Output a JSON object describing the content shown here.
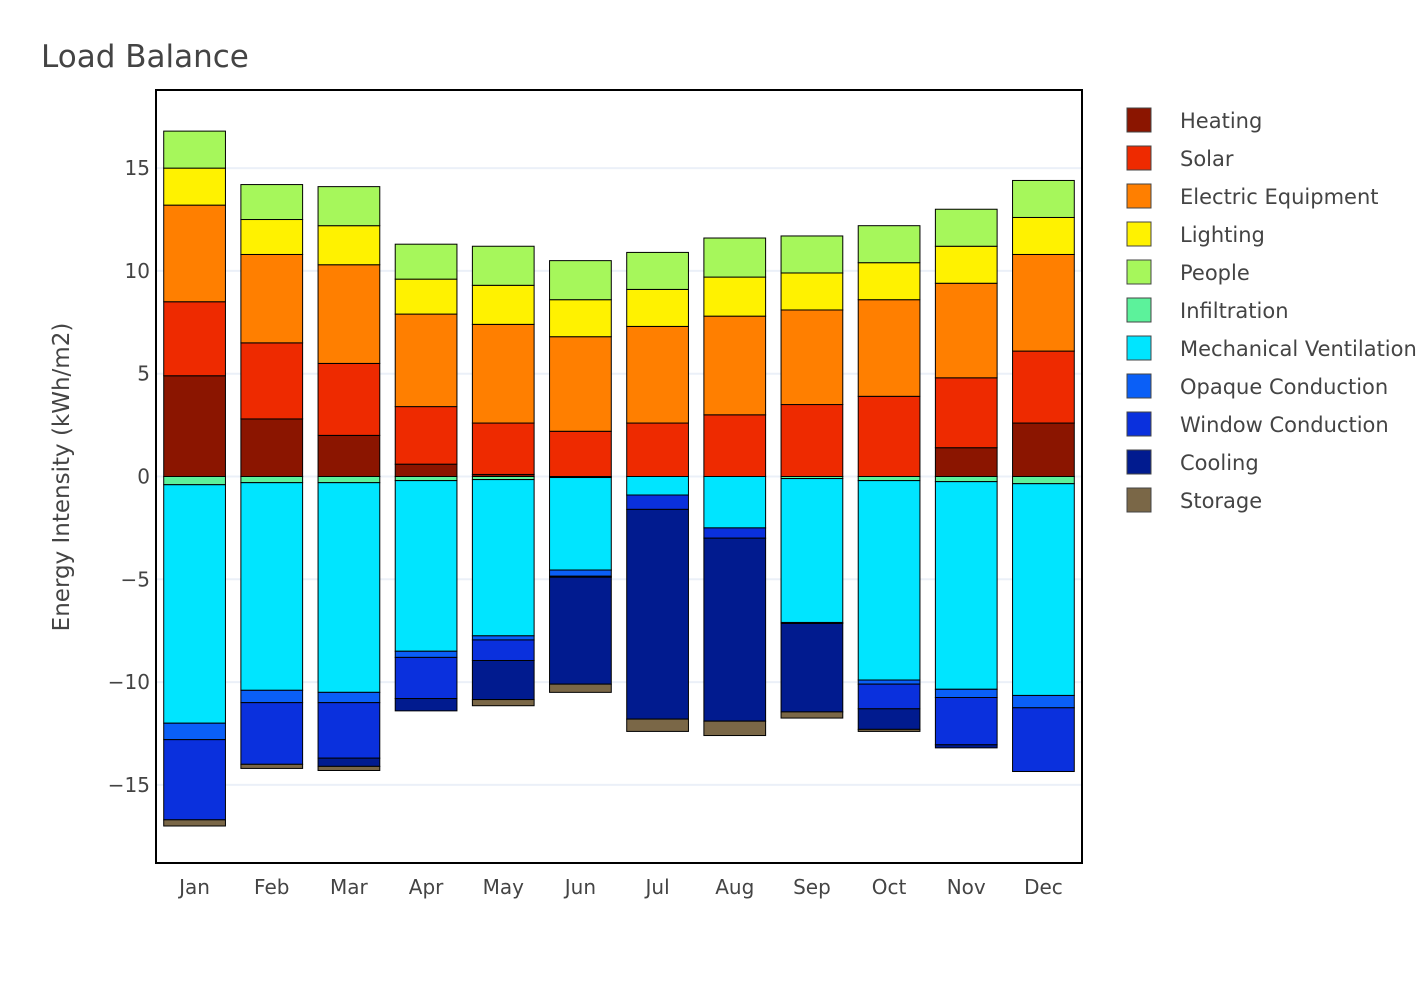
{
  "chart_data": {
    "type": "bar",
    "stacked": true,
    "title": "Load Balance",
    "ylabel": "Energy Intensity (kWh/m2)",
    "xlabel": "",
    "ylim": [
      -18.8,
      18.8
    ],
    "yticks": [
      -15,
      -10,
      -5,
      0,
      5,
      10,
      15
    ],
    "ytick_labels": [
      "−15",
      "−10",
      "−5",
      "0",
      "5",
      "10",
      "15"
    ],
    "grid": true,
    "legend_position": "right",
    "categories": [
      "Jan",
      "Feb",
      "Mar",
      "Apr",
      "May",
      "Jun",
      "Jul",
      "Aug",
      "Sep",
      "Oct",
      "Nov",
      "Dec"
    ],
    "series": [
      {
        "name": "Heating",
        "color": "#8b1500",
        "values": [
          4.9,
          2.8,
          2.0,
          0.6,
          0.1,
          0,
          0,
          0,
          0,
          0,
          1.4,
          2.6
        ]
      },
      {
        "name": "Solar",
        "color": "#ee2a00",
        "values": [
          3.6,
          3.7,
          3.5,
          2.8,
          2.5,
          2.2,
          2.6,
          3.0,
          3.5,
          3.9,
          3.4,
          3.5
        ]
      },
      {
        "name": "Electric Equipment",
        "color": "#ff7f00",
        "values": [
          4.7,
          4.3,
          4.8,
          4.5,
          4.8,
          4.6,
          4.7,
          4.8,
          4.6,
          4.7,
          4.6,
          4.7
        ]
      },
      {
        "name": "Lighting",
        "color": "#fff200",
        "values": [
          1.8,
          1.7,
          1.9,
          1.7,
          1.9,
          1.8,
          1.8,
          1.9,
          1.8,
          1.8,
          1.8,
          1.8
        ]
      },
      {
        "name": "People",
        "color": "#a6f75b",
        "values": [
          1.8,
          1.7,
          1.9,
          1.7,
          1.9,
          1.9,
          1.8,
          1.9,
          1.8,
          1.8,
          1.8,
          1.8
        ]
      },
      {
        "name": "Infiltration",
        "color": "#5cf29b",
        "values": [
          -0.4,
          -0.3,
          -0.3,
          -0.2,
          -0.15,
          -0.05,
          0,
          0,
          -0.1,
          -0.2,
          -0.25,
          -0.35
        ]
      },
      {
        "name": "Mechanical Ventilation",
        "color": "#00e5ff",
        "values": [
          -11.6,
          -10.1,
          -10.2,
          -8.3,
          -7.6,
          -4.5,
          -0.9,
          -2.5,
          -7.0,
          -9.7,
          -10.1,
          -10.3
        ]
      },
      {
        "name": "Opaque Conduction",
        "color": "#0a5ff7",
        "values": [
          -0.8,
          -0.6,
          -0.5,
          -0.3,
          -0.2,
          -0.3,
          0,
          0,
          -0.05,
          -0.2,
          -0.4,
          -0.6
        ]
      },
      {
        "name": "Window Conduction",
        "color": "#0a30dd",
        "values": [
          -3.9,
          -3.0,
          -2.7,
          -2.0,
          -1.0,
          -0.05,
          -0.7,
          -0.5,
          0,
          -1.2,
          -2.3,
          -3.1
        ]
      },
      {
        "name": "Cooling",
        "color": "#011b8f",
        "values": [
          0,
          0,
          -0.4,
          -0.6,
          -1.9,
          -5.2,
          -10.2,
          -8.9,
          -4.3,
          -1.0,
          -0.15,
          0
        ]
      },
      {
        "name": "Storage",
        "color": "#7a6747",
        "values": [
          -0.3,
          -0.2,
          -0.2,
          0,
          -0.3,
          -0.4,
          -0.6,
          -0.7,
          -0.3,
          -0.1,
          0,
          0
        ]
      }
    ]
  }
}
